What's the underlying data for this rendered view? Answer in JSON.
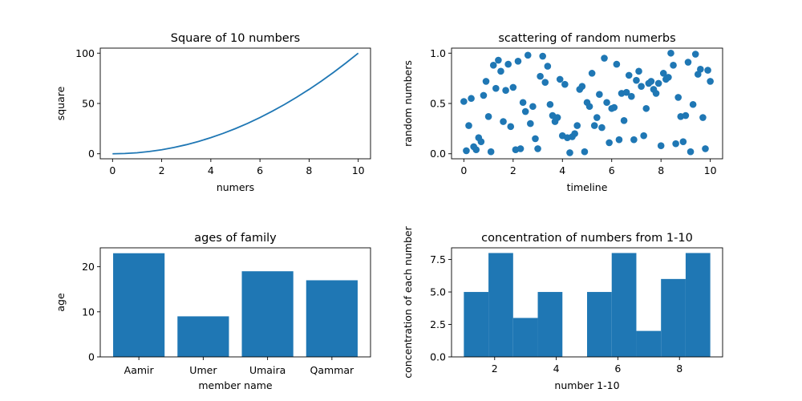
{
  "chart_data": [
    {
      "type": "line",
      "title": "Square of 10 numbers",
      "xlabel": "numers",
      "ylabel": "square",
      "xlim": [
        -0.5,
        10.5
      ],
      "ylim": [
        -5,
        105
      ],
      "xticks": [
        0,
        2,
        4,
        6,
        8,
        10
      ],
      "yticks": [
        0,
        50,
        100
      ],
      "series": [
        {
          "x": [
            0,
            0.5,
            1,
            1.5,
            2,
            2.5,
            3,
            3.5,
            4,
            4.5,
            5,
            5.5,
            6,
            6.5,
            7,
            7.5,
            8,
            8.5,
            9,
            9.5,
            10
          ],
          "y": [
            0,
            0.25,
            1,
            2.25,
            4,
            6.25,
            9,
            12.25,
            16,
            20.25,
            25,
            30.25,
            36,
            42.25,
            49,
            56.25,
            64,
            72.25,
            81,
            90.25,
            100
          ]
        }
      ],
      "color": "#1f77b4"
    },
    {
      "type": "scatter",
      "title": "scattering of random numerbs",
      "xlabel": "timeline",
      "ylabel": "random numbers",
      "xlim": [
        -0.5,
        10.5
      ],
      "ylim": [
        -0.05,
        1.05
      ],
      "xticks": [
        0,
        2,
        4,
        6,
        8,
        10
      ],
      "yticks": [
        0.0,
        0.5,
        1.0
      ],
      "ytick_labels": [
        "0.0",
        "0.5",
        "1.0"
      ],
      "series": [
        {
          "x": [
            0,
            0.1,
            0.2,
            0.3,
            0.4,
            0.5,
            0.6,
            0.7,
            0.8,
            0.9,
            1.0,
            1.1,
            1.2,
            1.3,
            1.4,
            1.5,
            1.6,
            1.7,
            1.8,
            1.9,
            2.0,
            2.1,
            2.2,
            2.3,
            2.4,
            2.5,
            2.6,
            2.7,
            2.8,
            2.9,
            3.0,
            3.1,
            3.2,
            3.3,
            3.4,
            3.5,
            3.6,
            3.7,
            3.8,
            3.9,
            4.0,
            4.1,
            4.2,
            4.3,
            4.4,
            4.5,
            4.6,
            4.7,
            4.8,
            4.9,
            5.0,
            5.1,
            5.2,
            5.3,
            5.4,
            5.5,
            5.6,
            5.7,
            5.8,
            5.9,
            6.0,
            6.1,
            6.2,
            6.3,
            6.4,
            6.5,
            6.6,
            6.7,
            6.8,
            6.9,
            7.0,
            7.1,
            7.2,
            7.3,
            7.4,
            7.5,
            7.6,
            7.7,
            7.8,
            7.9,
            8.0,
            8.1,
            8.2,
            8.3,
            8.4,
            8.5,
            8.6,
            8.7,
            8.8,
            8.9,
            9.0,
            9.1,
            9.2,
            9.3,
            9.4,
            9.5,
            9.6,
            9.7,
            9.8,
            9.9,
            10.0
          ],
          "y": [
            0.52,
            0.03,
            0.28,
            0.55,
            0.07,
            0.04,
            0.16,
            0.12,
            0.58,
            0.72,
            0.37,
            0.02,
            0.88,
            0.65,
            0.93,
            0.82,
            0.32,
            0.63,
            0.89,
            0.27,
            0.66,
            0.04,
            0.92,
            0.05,
            0.51,
            0.42,
            0.98,
            0.3,
            0.47,
            0.15,
            0.05,
            0.77,
            0.97,
            0.71,
            0.87,
            0.49,
            0.38,
            0.32,
            0.36,
            0.74,
            0.18,
            0.69,
            0.16,
            0.01,
            0.17,
            0.2,
            0.28,
            0.64,
            0.67,
            0.02,
            0.51,
            0.47,
            0.8,
            0.28,
            0.36,
            0.59,
            0.26,
            0.95,
            0.51,
            0.11,
            0.45,
            0.46,
            0.89,
            0.14,
            0.6,
            0.33,
            0.61,
            0.78,
            0.57,
            0.14,
            0.73,
            0.82,
            0.67,
            0.18,
            0.45,
            0.7,
            0.72,
            0.64,
            0.6,
            0.7,
            0.08,
            0.8,
            0.74,
            0.76,
            1.0,
            0.88,
            0.1,
            0.56,
            0.37,
            0.12,
            0.38,
            0.91,
            0.02,
            0.49,
            0.99,
            0.79,
            0.84,
            0.36,
            0.05,
            0.83,
            0.72
          ]
        }
      ],
      "color": "#1f77b4"
    },
    {
      "type": "bar",
      "title": "ages of family",
      "xlabel": "member name",
      "ylabel": "age",
      "categories": [
        "Aamir",
        "Umer",
        "Umaira",
        "Qammar"
      ],
      "values": [
        23,
        9,
        19,
        17
      ],
      "ylim": [
        0,
        24.2
      ],
      "yticks": [
        0,
        10,
        20
      ],
      "color": "#1f77b4"
    },
    {
      "type": "bar",
      "subtype": "histogram",
      "title": "concentration of numbers from 1-10",
      "xlabel": "number 1-10",
      "ylabel": "concentration of each number",
      "bin_edges": [
        1.0,
        1.8,
        2.6,
        3.4,
        4.2,
        5.0,
        5.8,
        6.6,
        7.4,
        8.2,
        9.0
      ],
      "values": [
        5,
        8,
        3,
        5,
        0,
        5,
        8,
        2,
        6,
        8
      ],
      "xlim": [
        0.6,
        9.4
      ],
      "ylim": [
        0,
        8.4
      ],
      "xticks": [
        2,
        4,
        6,
        8
      ],
      "yticks": [
        0.0,
        2.5,
        5.0,
        7.5
      ],
      "ytick_labels": [
        "0.0",
        "2.5",
        "5.0",
        "7.5"
      ],
      "color": "#1f77b4"
    }
  ]
}
